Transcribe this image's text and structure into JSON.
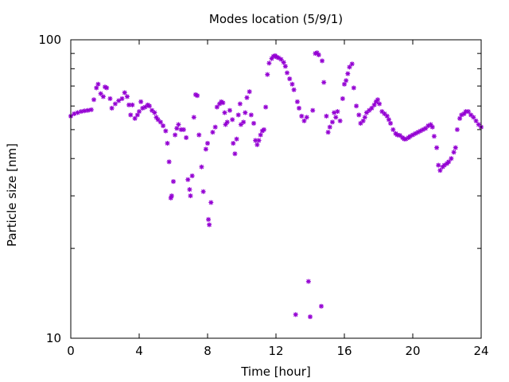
{
  "chart_data": {
    "type": "scatter",
    "title": "Modes location (5/9/1)",
    "xlabel": "Time [hour]",
    "ylabel": "Particle size [nm]",
    "xlim": [
      0,
      24
    ],
    "ylim": [
      10,
      100
    ],
    "yscale": "log",
    "grid": false,
    "x_ticks": [
      0,
      4,
      8,
      12,
      16,
      20,
      24
    ],
    "x_tick_labels": [
      "0",
      "4",
      "8",
      "12",
      "16",
      "20",
      "24"
    ],
    "y_ticks": [
      10,
      100
    ],
    "y_tick_labels": [
      "10",
      "100"
    ],
    "marker_color": "#9400d3",
    "series": [
      {
        "points": [
          [
            0.0,
            55.5
          ],
          [
            0.2,
            56.5
          ],
          [
            0.4,
            57.0
          ],
          [
            0.6,
            57.5
          ],
          [
            0.8,
            57.8
          ],
          [
            1.0,
            58.0
          ],
          [
            1.2,
            58.3
          ],
          [
            1.35,
            63.0
          ],
          [
            1.5,
            69.0
          ],
          [
            1.6,
            71.0
          ],
          [
            1.75,
            66.0
          ],
          [
            1.9,
            64.5
          ],
          [
            2.0,
            69.5
          ],
          [
            2.1,
            69.0
          ],
          [
            2.3,
            63.5
          ],
          [
            2.4,
            59.0
          ],
          [
            2.6,
            61.0
          ],
          [
            2.8,
            62.5
          ],
          [
            3.0,
            63.5
          ],
          [
            3.15,
            66.5
          ],
          [
            3.3,
            64.5
          ],
          [
            3.4,
            60.5
          ],
          [
            3.5,
            56.0
          ],
          [
            3.6,
            60.5
          ],
          [
            3.75,
            54.5
          ],
          [
            3.9,
            56.0
          ],
          [
            4.0,
            57.5
          ],
          [
            4.1,
            62.0
          ],
          [
            4.2,
            59.0
          ],
          [
            4.35,
            59.5
          ],
          [
            4.5,
            60.5
          ],
          [
            4.6,
            60.0
          ],
          [
            4.75,
            58.0
          ],
          [
            4.9,
            57.0
          ],
          [
            5.0,
            55.0
          ],
          [
            5.1,
            54.0
          ],
          [
            5.25,
            53.0
          ],
          [
            5.4,
            51.5
          ],
          [
            5.55,
            49.5
          ],
          [
            5.65,
            45.0
          ],
          [
            5.75,
            39.0
          ],
          [
            5.85,
            29.5
          ],
          [
            5.9,
            30.0
          ],
          [
            6.0,
            33.5
          ],
          [
            6.1,
            48.0
          ],
          [
            6.2,
            50.5
          ],
          [
            6.3,
            52.0
          ],
          [
            6.45,
            50.0
          ],
          [
            6.6,
            50.0
          ],
          [
            6.75,
            47.0
          ],
          [
            6.85,
            34.0
          ],
          [
            6.95,
            31.5
          ],
          [
            7.0,
            30.0
          ],
          [
            7.1,
            35.0
          ],
          [
            7.2,
            55.0
          ],
          [
            7.3,
            65.5
          ],
          [
            7.4,
            65.0
          ],
          [
            7.5,
            48.0
          ],
          [
            7.65,
            37.5
          ],
          [
            7.75,
            31.0
          ],
          [
            7.9,
            43.0
          ],
          [
            8.0,
            45.0
          ],
          [
            8.05,
            25.0
          ],
          [
            8.1,
            24.0
          ],
          [
            8.2,
            28.5
          ],
          [
            8.3,
            49.0
          ],
          [
            8.45,
            51.0
          ],
          [
            8.55,
            59.5
          ],
          [
            8.7,
            61.0
          ],
          [
            8.8,
            62.0
          ],
          [
            8.9,
            61.5
          ],
          [
            9.0,
            57.0
          ],
          [
            9.05,
            52.0
          ],
          [
            9.15,
            53.0
          ],
          [
            9.3,
            58.0
          ],
          [
            9.45,
            54.0
          ],
          [
            9.5,
            45.0
          ],
          [
            9.6,
            41.5
          ],
          [
            9.7,
            46.5
          ],
          [
            9.8,
            56.0
          ],
          [
            9.9,
            61.0
          ],
          [
            9.95,
            52.0
          ],
          [
            10.1,
            53.0
          ],
          [
            10.2,
            57.0
          ],
          [
            10.3,
            64.0
          ],
          [
            10.45,
            67.0
          ],
          [
            10.55,
            56.0
          ],
          [
            10.7,
            52.5
          ],
          [
            10.8,
            46.0
          ],
          [
            10.9,
            44.5
          ],
          [
            11.0,
            46.0
          ],
          [
            11.1,
            48.0
          ],
          [
            11.2,
            49.5
          ],
          [
            11.3,
            50.0
          ],
          [
            11.4,
            59.5
          ],
          [
            11.5,
            76.5
          ],
          [
            11.6,
            83.5
          ],
          [
            11.75,
            86.5
          ],
          [
            11.85,
            88.0
          ],
          [
            11.95,
            88.5
          ],
          [
            12.05,
            87.5
          ],
          [
            12.15,
            87.0
          ],
          [
            12.3,
            86.0
          ],
          [
            12.45,
            84.0
          ],
          [
            12.55,
            81.5
          ],
          [
            12.65,
            77.5
          ],
          [
            12.8,
            74.0
          ],
          [
            12.95,
            71.0
          ],
          [
            13.05,
            68.0
          ],
          [
            13.15,
            12.0
          ],
          [
            13.25,
            62.0
          ],
          [
            13.35,
            59.0
          ],
          [
            13.5,
            55.5
          ],
          [
            13.65,
            53.5
          ],
          [
            13.8,
            55.0
          ],
          [
            13.9,
            15.5
          ],
          [
            14.0,
            11.8
          ],
          [
            14.15,
            58.0
          ],
          [
            14.3,
            90.0
          ],
          [
            14.4,
            90.5
          ],
          [
            14.5,
            89.0
          ],
          [
            14.65,
            12.8
          ],
          [
            14.7,
            85.0
          ],
          [
            14.8,
            72.0
          ],
          [
            14.95,
            55.5
          ],
          [
            15.05,
            49.0
          ],
          [
            15.15,
            51.0
          ],
          [
            15.3,
            53.0
          ],
          [
            15.4,
            57.0
          ],
          [
            15.5,
            55.0
          ],
          [
            15.6,
            57.5
          ],
          [
            15.75,
            53.5
          ],
          [
            15.9,
            63.5
          ],
          [
            16.0,
            71.0
          ],
          [
            16.1,
            73.0
          ],
          [
            16.2,
            77.0
          ],
          [
            16.3,
            81.0
          ],
          [
            16.45,
            83.0
          ],
          [
            16.55,
            69.0
          ],
          [
            16.7,
            60.0
          ],
          [
            16.85,
            56.0
          ],
          [
            16.95,
            52.5
          ],
          [
            17.1,
            53.5
          ],
          [
            17.2,
            55.0
          ],
          [
            17.3,
            57.0
          ],
          [
            17.45,
            58.0
          ],
          [
            17.6,
            59.0
          ],
          [
            17.75,
            60.5
          ],
          [
            17.85,
            62.0
          ],
          [
            17.95,
            63.0
          ],
          [
            18.05,
            61.0
          ],
          [
            18.2,
            57.5
          ],
          [
            18.35,
            56.5
          ],
          [
            18.5,
            55.5
          ],
          [
            18.6,
            54.0
          ],
          [
            18.7,
            52.5
          ],
          [
            18.85,
            50.0
          ],
          [
            19.0,
            48.5
          ],
          [
            19.1,
            48.0
          ],
          [
            19.25,
            47.8
          ],
          [
            19.4,
            47.0
          ],
          [
            19.5,
            46.5
          ],
          [
            19.6,
            46.5
          ],
          [
            19.75,
            47.0
          ],
          [
            19.85,
            47.5
          ],
          [
            20.0,
            48.0
          ],
          [
            20.15,
            48.5
          ],
          [
            20.3,
            49.0
          ],
          [
            20.45,
            49.5
          ],
          [
            20.6,
            50.0
          ],
          [
            20.75,
            50.5
          ],
          [
            20.9,
            51.5
          ],
          [
            21.05,
            52.0
          ],
          [
            21.15,
            51.0
          ],
          [
            21.25,
            47.5
          ],
          [
            21.4,
            43.5
          ],
          [
            21.5,
            38.0
          ],
          [
            21.6,
            36.5
          ],
          [
            21.75,
            37.5
          ],
          [
            21.85,
            38.0
          ],
          [
            22.0,
            38.5
          ],
          [
            22.1,
            39.0
          ],
          [
            22.25,
            40.0
          ],
          [
            22.4,
            42.0
          ],
          [
            22.5,
            43.5
          ],
          [
            22.6,
            50.0
          ],
          [
            22.75,
            54.5
          ],
          [
            22.85,
            56.0
          ],
          [
            23.0,
            56.5
          ],
          [
            23.1,
            57.5
          ],
          [
            23.25,
            57.5
          ],
          [
            23.4,
            56.0
          ],
          [
            23.55,
            55.0
          ],
          [
            23.7,
            53.5
          ],
          [
            23.85,
            52.0
          ],
          [
            24.0,
            51.0
          ]
        ]
      }
    ]
  }
}
